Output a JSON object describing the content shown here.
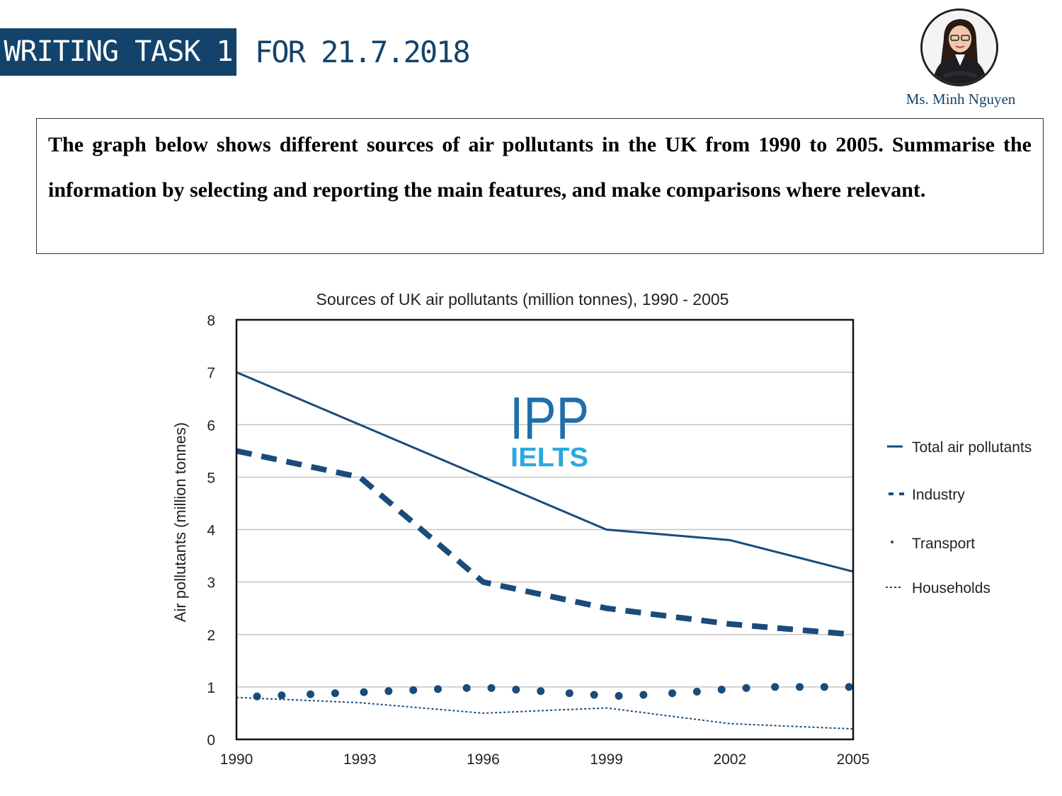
{
  "header": {
    "badge": "WRITING TASK 1",
    "date": "FOR 21.7.2018",
    "author": "Ms. Minh Nguyen"
  },
  "task": {
    "text": "The graph below shows different sources of air pollutants in the UK from 1990 to 2005. Summarise the information by selecting and reporting the main features, and make comparisons where relevant."
  },
  "watermark": {
    "logo_text": "IPP",
    "sub_text": "IELTS"
  },
  "colors": {
    "brand": "#13436b",
    "series": "#1a4b7a",
    "logo_blue": "#1f6fa8",
    "logo_light": "#29a9df"
  },
  "chart_data": {
    "type": "line",
    "title": "Sources of UK air pollutants (million tonnes), 1990 - 2005",
    "ylabel": "Air pollutants (million tonnes)",
    "xlabel": "",
    "x": [
      1990,
      1993,
      1996,
      1999,
      2002,
      2005
    ],
    "x_tick_labels": [
      "1990",
      "1993",
      "1996",
      "1999",
      "2002",
      "2005"
    ],
    "y_ticks": [
      "0",
      "1",
      "2",
      "3",
      "4",
      "5",
      "6",
      "7",
      "8"
    ],
    "ylim": [
      0,
      8
    ],
    "grid": true,
    "legend_position": "right",
    "series": [
      {
        "name": "Total air pollutants",
        "style": "solid",
        "values": [
          7,
          6,
          5,
          4,
          3.8,
          3.2
        ]
      },
      {
        "name": "Industry",
        "style": "dashed",
        "values": [
          5.5,
          5,
          3,
          2.5,
          2.2,
          2
        ]
      },
      {
        "name": "Transport",
        "style": "dots",
        "x": [
          1990.5,
          1991.1,
          1991.8,
          1992.4,
          1993.1,
          1993.7,
          1994.3,
          1994.9,
          1995.6,
          1996.2,
          1996.8,
          1997.4,
          1998.1,
          1998.7,
          1999.3,
          1999.9,
          2000.6,
          2001.2,
          2001.8,
          2002.4,
          2003.1,
          2003.7,
          2004.3,
          2004.9
        ],
        "values": [
          0.82,
          0.84,
          0.86,
          0.88,
          0.9,
          0.92,
          0.94,
          0.96,
          0.98,
          0.98,
          0.95,
          0.92,
          0.88,
          0.85,
          0.83,
          0.85,
          0.88,
          0.91,
          0.95,
          0.98,
          1.0,
          1.0,
          1.0,
          1.0
        ]
      },
      {
        "name": "Households",
        "style": "dotted",
        "values": [
          0.8,
          0.7,
          0.5,
          0.6,
          0.3,
          0.2
        ]
      }
    ]
  }
}
